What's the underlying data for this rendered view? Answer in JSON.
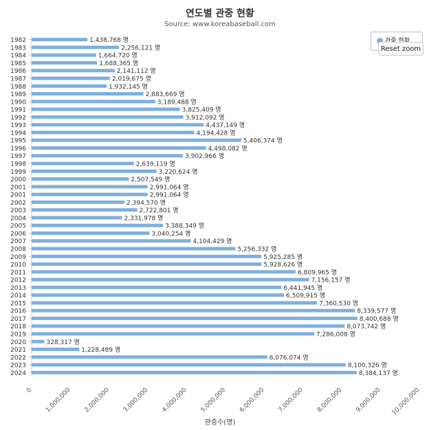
{
  "reset_zoom_label": "Reset zoom",
  "colors": {
    "bar": "#7fb0de",
    "axis": "#cccccc",
    "text": "#333333"
  },
  "chart_data": {
    "type": "bar",
    "orientation": "horizontal",
    "title": "연도별 관중 현황",
    "subtitle": "Source: www.koreabaseball.com",
    "xlabel": "관중수(명)",
    "ylabel": "",
    "xlim": [
      0,
      10000000
    ],
    "xticks": [
      "0",
      "1,000,000",
      "2,000,000",
      "3,000,000",
      "4,000,000",
      "5,000,000",
      "6,000,000",
      "7,000,000",
      "8,000,000",
      "9,000,000",
      "10,000,000"
    ],
    "value_suffix": " 명",
    "legend": {
      "placement": "top-right",
      "label": "관중 현황"
    },
    "categories": [
      "1982",
      "1983",
      "1984",
      "1985",
      "1986",
      "1987",
      "1988",
      "1989",
      "1990",
      "1991",
      "1992",
      "1993",
      "1994",
      "1995",
      "1996",
      "1997",
      "1998",
      "1999",
      "2000",
      "2001",
      "2001",
      "2002",
      "2003",
      "2004",
      "2005",
      "2006",
      "2007",
      "2008",
      "2009",
      "2010",
      "2011",
      "2012",
      "2013",
      "2014",
      "2015",
      "2016",
      "2017",
      "2018",
      "2019",
      "2020",
      "2021",
      "2022",
      "2023",
      "2024"
    ],
    "values": [
      1438768,
      2256121,
      1664720,
      1688365,
      2141112,
      2019675,
      1932145,
      2883669,
      3189488,
      3825409,
      3912092,
      4437149,
      4194428,
      5406374,
      4498082,
      3902966,
      2639119,
      3220624,
      2507549,
      2991064,
      2991064,
      2394570,
      2722801,
      2331978,
      3388349,
      3040254,
      4104429,
      5256332,
      5925285,
      5928626,
      6809965,
      7156157,
      6441945,
      6509915,
      7360530,
      8339577,
      8400688,
      8073742,
      7286008,
      328317,
      1228489,
      6076074,
      8100326,
      8384137
    ]
  }
}
